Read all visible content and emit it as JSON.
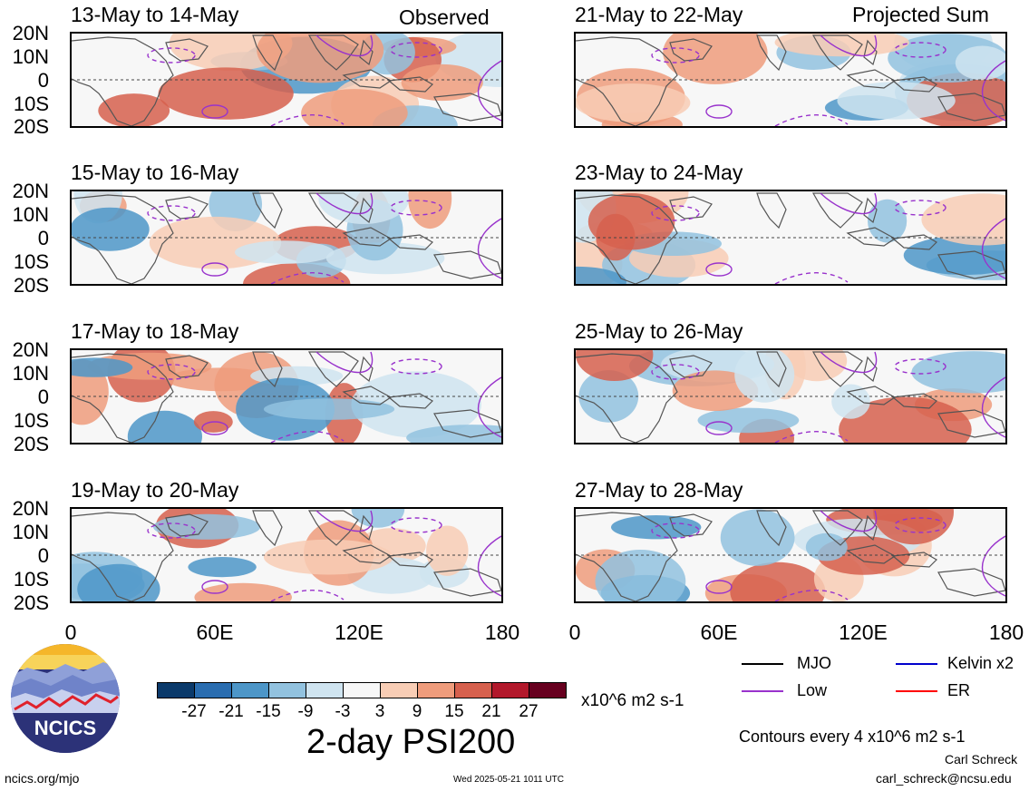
{
  "header": {
    "left_label": "Observed",
    "right_label": "Projected Sum"
  },
  "panels": [
    {
      "title": "13-May to 14-May",
      "column": "left"
    },
    {
      "title": "15-May to 16-May",
      "column": "left"
    },
    {
      "title": "17-May to 18-May",
      "column": "left"
    },
    {
      "title": "19-May to 20-May",
      "column": "left"
    },
    {
      "title": "21-May to 22-May",
      "column": "right"
    },
    {
      "title": "23-May to 24-May",
      "column": "right"
    },
    {
      "title": "25-May to 26-May",
      "column": "right"
    },
    {
      "title": "27-May to 28-May",
      "column": "right"
    }
  ],
  "lat_labels": [
    "20N",
    "10N",
    "0",
    "10S",
    "20S"
  ],
  "lon_labels": [
    "0",
    "60E",
    "120E",
    "180"
  ],
  "colorbar": {
    "ticks": [
      "-27",
      "-21",
      "-15",
      "-9",
      "-3",
      "3",
      "9",
      "15",
      "21",
      "27"
    ],
    "colors": [
      "#0b3a6b",
      "#2a6db0",
      "#4d96c8",
      "#92c2df",
      "#cfe4f0",
      "#f7f7f7",
      "#f8cdb5",
      "#ef9c7c",
      "#d6604d",
      "#b2182b",
      "#67001f"
    ],
    "units": "x10^6 m2 s-1"
  },
  "main_title": "2-day PSI200",
  "legend": {
    "items": [
      {
        "label": "MJO",
        "color": "#000000"
      },
      {
        "label": "Kelvin x2",
        "color": "#0000cc"
      },
      {
        "label": "Low",
        "color": "#9933cc"
      },
      {
        "label": "ER",
        "color": "#ff0000"
      }
    ],
    "contour_note": "Contours every 4 x10^6 m2 s-1"
  },
  "logo": {
    "text": "NCICS"
  },
  "footer": {
    "url": "ncics.org/mjo",
    "timestamp": "Wed 2025-05-21 1011 UTC",
    "author": "Carl Schreck",
    "email": "carl_schreck@ncsu.edu"
  }
}
